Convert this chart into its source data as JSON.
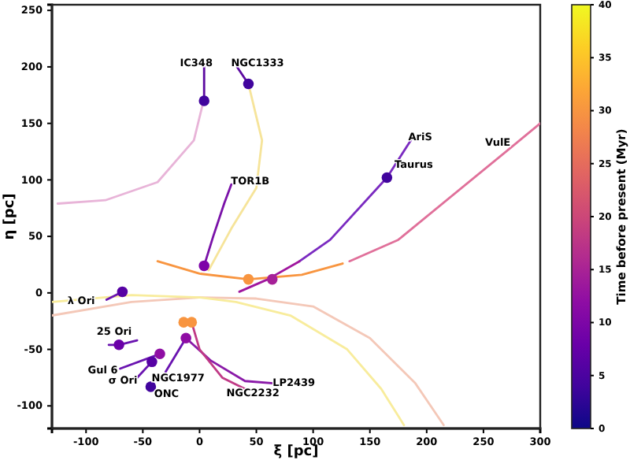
{
  "chart_data": {
    "type": "scatter",
    "xlabel": "ξ [pc]",
    "ylabel": "η [pc]",
    "clabel": "Time before present (Myr)",
    "xlim": [
      -130,
      300
    ],
    "xticks": [
      -100,
      -50,
      0,
      50,
      100,
      150,
      200,
      250,
      300
    ],
    "ylim": [
      -120,
      255
    ],
    "yticks": [
      -100,
      -50,
      0,
      50,
      100,
      150,
      200,
      250
    ],
    "clim": [
      0,
      40
    ],
    "cticks": [
      0,
      5,
      10,
      15,
      20,
      25,
      30,
      35,
      40
    ],
    "series": [
      {
        "type": "line",
        "color": "#e8b4d8",
        "x": [
          4,
          -5,
          -37,
          -83,
          -125
        ],
        "values": [
          172,
          135,
          98,
          82,
          79
        ]
      },
      {
        "type": "line",
        "color": "#5c0aa0",
        "x": [
          4,
          4
        ],
        "values": [
          172,
          200
        ]
      },
      {
        "type": "line",
        "color": "#6a14b0",
        "x": [
          -70,
          -35
        ],
        "values": [
          -67,
          -54
        ]
      },
      {
        "type": "line",
        "color": "#6a14b0",
        "x": [
          -55,
          -42
        ],
        "values": [
          -75,
          -61
        ]
      },
      {
        "type": "line",
        "color": "#6a14b0",
        "x": [
          -30,
          -12
        ],
        "values": [
          -70,
          -40
        ]
      },
      {
        "type": "line",
        "color": "#f6e49a",
        "x": [
          43,
          55,
          50,
          28,
          8
        ],
        "values": [
          185,
          135,
          93,
          57,
          20
        ]
      },
      {
        "type": "line",
        "color": "#5c0aa0",
        "x": [
          43,
          33
        ],
        "values": [
          185,
          200
        ]
      },
      {
        "type": "line",
        "color": "#7a12a8",
        "x": [
          4,
          12,
          22,
          28
        ],
        "values": [
          24,
          50,
          80,
          96
        ]
      },
      {
        "type": "line",
        "color": "#7a2ac0",
        "x": [
          186,
          165,
          115,
          88
        ],
        "values": [
          135,
          102,
          47,
          28
        ]
      },
      {
        "type": "line",
        "color": "#a0169e",
        "x": [
          88,
          60,
          35
        ],
        "values": [
          28,
          12,
          1
        ]
      },
      {
        "type": "line",
        "color": "#e0709a",
        "x": [
          300,
          271,
          175,
          132
        ],
        "values": [
          150,
          126,
          47,
          28
        ]
      },
      {
        "type": "line",
        "color": "#f89540",
        "x": [
          -37,
          0,
          43,
          90,
          126
        ],
        "values": [
          28,
          17,
          12,
          16,
          26
        ]
      },
      {
        "type": "line",
        "color": "#f4c8b8",
        "x": [
          -130,
          -60,
          0,
          50,
          100,
          150,
          190,
          215
        ],
        "values": [
          -20,
          -8,
          -4,
          -5,
          -12,
          -40,
          -80,
          -117
        ]
      },
      {
        "type": "line",
        "color": "#f8ec9c",
        "x": [
          -130,
          -60,
          0,
          32,
          80,
          130,
          160,
          180
        ],
        "values": [
          -8,
          -2,
          -4,
          -8,
          -20,
          -50,
          -85,
          -117
        ]
      },
      {
        "type": "line",
        "color": "#6a14b0",
        "x": [
          -82,
          -68
        ],
        "values": [
          -6,
          1
        ]
      },
      {
        "type": "line",
        "color": "#6a14b0",
        "x": [
          -80,
          -71,
          -55
        ],
        "values": [
          -46,
          -46,
          -42
        ]
      },
      {
        "type": "line",
        "color": "#8a1aa8",
        "x": [
          -12,
          10,
          40,
          65
        ],
        "values": [
          -40,
          -60,
          -78,
          -80
        ]
      },
      {
        "type": "line",
        "color": "#c03a86",
        "x": [
          -7,
          0,
          20,
          40
        ],
        "values": [
          -26,
          -50,
          -75,
          -85
        ]
      },
      {
        "type": "scatter",
        "marker": "circle",
        "x": [
          4,
          43,
          165,
          4,
          -68,
          -71,
          -35,
          -42,
          -43,
          -12,
          -14,
          -7,
          43,
          64
        ],
        "values": [
          170,
          185,
          102,
          24,
          1,
          -46,
          -54,
          -61,
          -83,
          -40,
          -26,
          -26,
          12,
          12
        ],
        "colors": [
          "#41049d",
          "#41049d",
          "#41049d",
          "#7e03a8",
          "#5601a4",
          "#6a00a8",
          "#8f0da4",
          "#5601a4",
          "#41049d",
          "#8f0da4",
          "#f89540",
          "#f89540",
          "#f89540",
          "#a62098"
        ]
      }
    ],
    "annotations": [
      {
        "text": "IC348",
        "x": 4,
        "y": 200
      },
      {
        "text": "NGC1333",
        "x": 33,
        "y": 200
      },
      {
        "text": "TOR1B",
        "x": 28,
        "y": 96
      },
      {
        "text": "AriS",
        "x": 186,
        "y": 135
      },
      {
        "text": "Taurus",
        "x": 165,
        "y": 102
      },
      {
        "text": "VulE",
        "x": 271,
        "y": 126
      },
      {
        "text": "λ Ori",
        "x": -82,
        "y": -6
      },
      {
        "text": "25 Ori",
        "x": -71,
        "y": -46
      },
      {
        "text": "Gul 6",
        "x": -70,
        "y": -67
      },
      {
        "text": "σ Ori",
        "x": -55,
        "y": -75
      },
      {
        "text": "ONC",
        "x": -43,
        "y": -83
      },
      {
        "text": "NGC1977",
        "x": -30,
        "y": -70
      },
      {
        "text": "NGC2232",
        "x": 40,
        "y": -85
      },
      {
        "text": "LP2439",
        "x": 65,
        "y": -80
      }
    ]
  }
}
